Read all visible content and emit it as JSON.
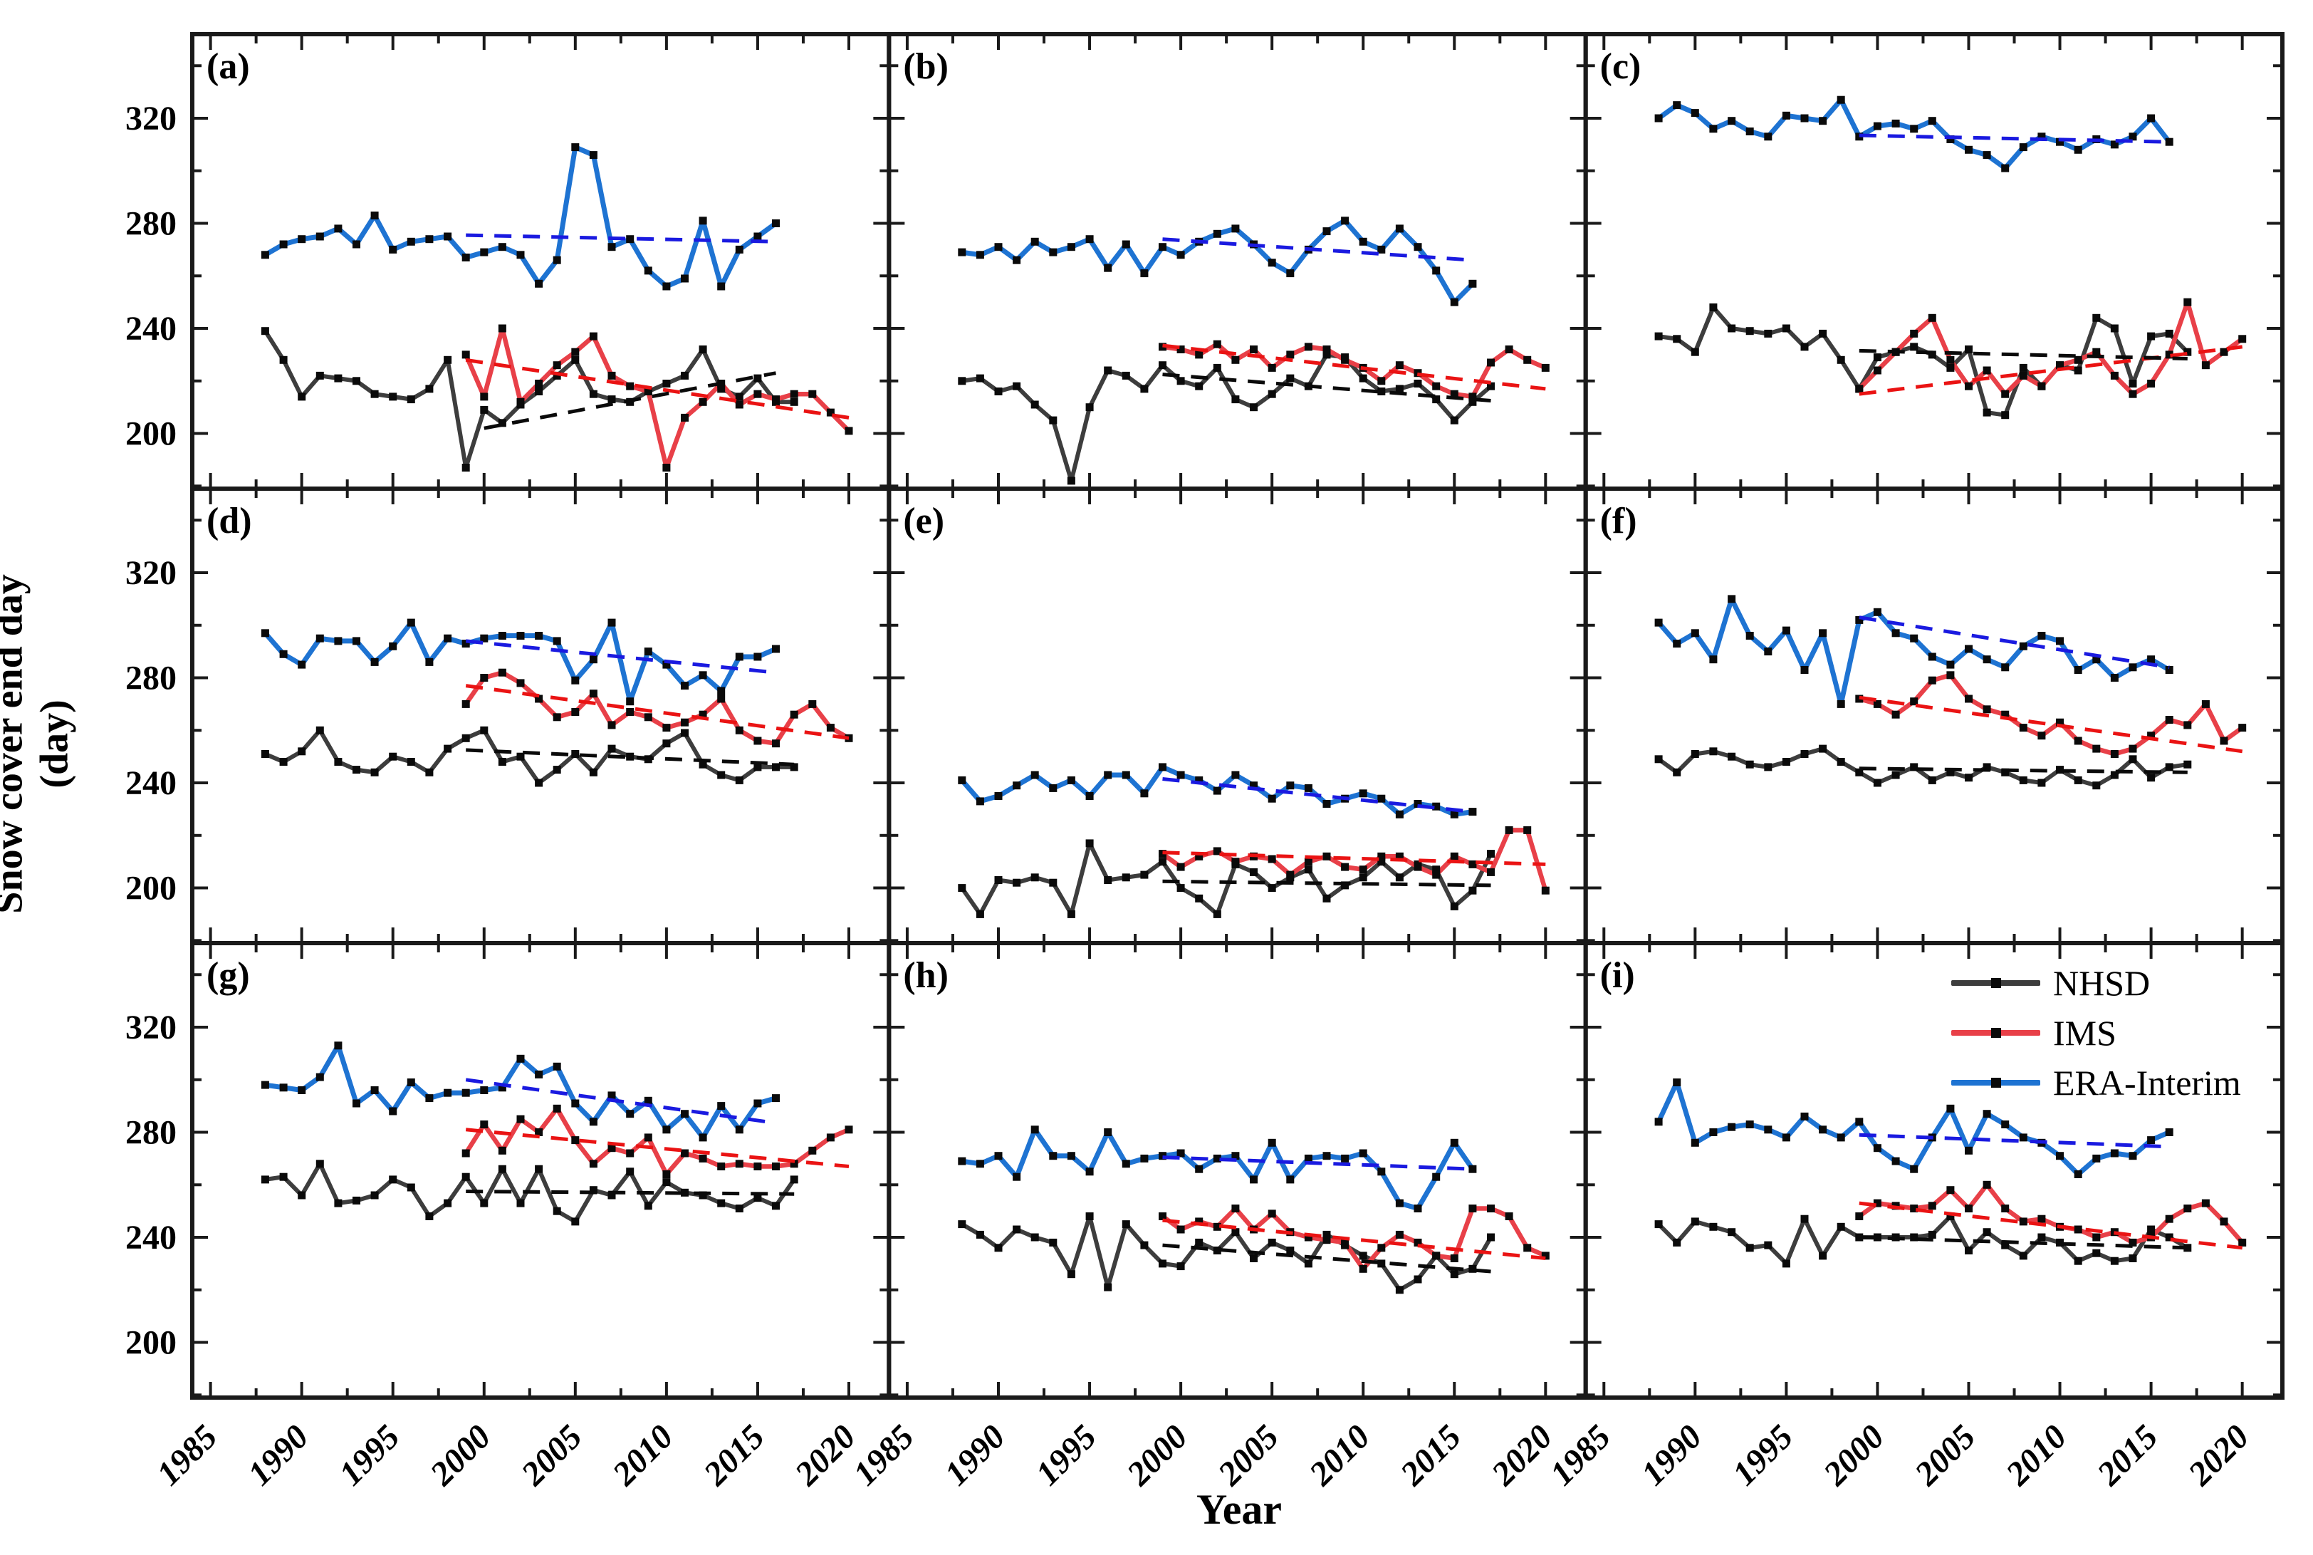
{
  "figure": {
    "y_axis_title": "Snow cover end day",
    "y_axis_title_line2": "(day)",
    "x_axis_title": "Year"
  },
  "legend": {
    "entries": [
      {
        "label": "NHSD",
        "color": "#3d3d3d"
      },
      {
        "label": "IMS",
        "color": "#e84048"
      },
      {
        "label": "ERA-Interim",
        "color": "#1e73d2"
      }
    ]
  },
  "colors": {
    "nhsd_line": "#3d3d3d",
    "ims_line": "#e84048",
    "era_line": "#1e73d2",
    "nhsd_trend": "#0a0a0a",
    "ims_trend": "#ea1313",
    "era_trend": "#1a1ae0",
    "marker": "#0a0a0a",
    "frame": "#1a1a1a"
  },
  "chart_data": {
    "type": "line",
    "title": "",
    "xlabel": "Year",
    "ylabel": "Snow cover end day (day)",
    "y_ticks": [
      320,
      280,
      240,
      200
    ],
    "y_minor_ticks": [
      340,
      300,
      260,
      220,
      180
    ],
    "x_ticks": [
      1985,
      1990,
      1995,
      2000,
      2005,
      2010,
      2015,
      2020
    ],
    "x_range": [
      1984,
      2022.2
    ],
    "y_range": [
      179,
      352
    ],
    "grid": false,
    "legend_position": "top-right of panel (i)",
    "series_names": [
      "NHSD",
      "IMS",
      "ERA-Interim"
    ],
    "panels": [
      {
        "panel_label": "(a)",
        "nhsd": {
          "start_year": 1988,
          "values": [
            239,
            228,
            214,
            222,
            221,
            220,
            215,
            214,
            213,
            217,
            228,
            187,
            209,
            204,
            211,
            216,
            222,
            228,
            215,
            213,
            212,
            216,
            219,
            222,
            232,
            217,
            214,
            221,
            212,
            212
          ]
        },
        "ims": {
          "start_year": 1999,
          "values": [
            230,
            214,
            240,
            212,
            219,
            226,
            231,
            237,
            222,
            218,
            216,
            187,
            206,
            212,
            219,
            211,
            215,
            213,
            215,
            215,
            208,
            201
          ]
        },
        "era": {
          "start_year": 1988,
          "values": [
            268,
            272,
            274,
            275,
            278,
            272,
            283,
            270,
            273,
            274,
            275,
            267,
            269,
            271,
            268,
            257,
            266,
            309,
            306,
            271,
            274,
            262,
            256,
            259,
            281,
            256,
            270,
            275,
            280
          ]
        },
        "trends": {
          "era": [
            1999,
            275.5,
            2016,
            273
          ],
          "ims": [
            1999,
            228,
            2020,
            206
          ],
          "nhsd": [
            2000,
            202,
            2016,
            223
          ]
        }
      },
      {
        "panel_label": "(b)",
        "nhsd": {
          "start_year": 1988,
          "values": [
            220,
            221,
            216,
            218,
            211,
            205,
            182,
            210,
            224,
            222,
            217,
            226,
            220,
            218,
            225,
            213,
            210,
            215,
            221,
            218,
            230,
            229,
            221,
            216,
            217,
            219,
            213,
            205,
            212,
            218
          ]
        },
        "ims": {
          "start_year": 1999,
          "values": [
            233,
            232,
            230,
            234,
            228,
            232,
            225,
            230,
            233,
            232,
            228,
            225,
            220,
            226,
            223,
            218,
            215,
            214,
            227,
            232,
            228,
            225
          ]
        },
        "era": {
          "start_year": 1988,
          "values": [
            269,
            268,
            271,
            266,
            273,
            269,
            271,
            274,
            263,
            272,
            261,
            271,
            268,
            273,
            276,
            278,
            272,
            265,
            261,
            270,
            277,
            281,
            273,
            270,
            278,
            271,
            262,
            250,
            257
          ]
        },
        "trends": {
          "era": [
            1999,
            274,
            2016,
            266
          ],
          "ims": [
            1999,
            233.5,
            2020,
            217
          ],
          "nhsd": [
            1999,
            222.5,
            2017,
            212.5
          ]
        }
      },
      {
        "panel_label": "(c)",
        "nhsd": {
          "start_year": 1988,
          "values": [
            237,
            236,
            231,
            248,
            240,
            239,
            238,
            240,
            233,
            238,
            228,
            217,
            229,
            231,
            233,
            230,
            225,
            232,
            208,
            207,
            225,
            218,
            226,
            224,
            244,
            240,
            219,
            237,
            238,
            231
          ]
        },
        "ims": {
          "start_year": 1999,
          "values": [
            217,
            224,
            231,
            238,
            244,
            228,
            218,
            224,
            215,
            222,
            218,
            226,
            228,
            231,
            222,
            215,
            219,
            230,
            250,
            226,
            231,
            236
          ]
        },
        "era": {
          "start_year": 1988,
          "values": [
            320,
            325,
            322,
            316,
            319,
            315,
            313,
            321,
            320,
            319,
            327,
            313,
            317,
            318,
            316,
            319,
            312,
            308,
            306,
            301,
            309,
            313,
            311,
            308,
            312,
            310,
            313,
            320,
            311
          ]
        },
        "trends": {
          "era": [
            1999,
            313.5,
            2016,
            311
          ],
          "ims": [
            1999,
            215,
            2020,
            233
          ],
          "nhsd": [
            1999,
            231.5,
            2017,
            228.5
          ]
        }
      },
      {
        "panel_label": "(d)",
        "nhsd": {
          "start_year": 1988,
          "values": [
            251,
            248,
            252,
            260,
            248,
            245,
            244,
            250,
            248,
            244,
            253,
            257,
            260,
            248,
            250,
            240,
            245,
            251,
            244,
            253,
            250,
            249,
            255,
            259,
            247,
            243,
            241,
            246,
            246,
            246
          ]
        },
        "ims": {
          "start_year": 1999,
          "values": [
            270,
            280,
            282,
            278,
            272,
            265,
            267,
            274,
            262,
            267,
            265,
            261,
            263,
            266,
            272,
            260,
            256,
            255,
            266,
            270,
            261,
            257
          ]
        },
        "era": {
          "start_year": 1988,
          "values": [
            297,
            289,
            285,
            295,
            294,
            294,
            286,
            292,
            301,
            286,
            295,
            293,
            295,
            296,
            296,
            296,
            294,
            279,
            287,
            301,
            271,
            290,
            285,
            277,
            281,
            275,
            288,
            288,
            291
          ]
        },
        "trends": {
          "era": [
            1999,
            294,
            2016,
            282
          ],
          "ims": [
            1999,
            277,
            2020,
            257
          ],
          "nhsd": [
            1999,
            252.5,
            2017,
            247
          ]
        }
      },
      {
        "panel_label": "(e)",
        "nhsd": {
          "start_year": 1988,
          "values": [
            200,
            190,
            203,
            202,
            204,
            202,
            190,
            217,
            203,
            204,
            205,
            210,
            200,
            196,
            190,
            209,
            206,
            200,
            204,
            207,
            196,
            201,
            204,
            210,
            204,
            209,
            207,
            193,
            199,
            213
          ]
        },
        "ims": {
          "start_year": 1999,
          "values": [
            213,
            208,
            212,
            214,
            210,
            212,
            211,
            205,
            210,
            212,
            208,
            207,
            212,
            212,
            208,
            205,
            212,
            209,
            206,
            222,
            222,
            199
          ]
        },
        "era": {
          "start_year": 1988,
          "values": [
            241,
            233,
            235,
            239,
            243,
            238,
            241,
            235,
            243,
            243,
            236,
            246,
            243,
            241,
            237,
            243,
            239,
            234,
            239,
            238,
            232,
            234,
            236,
            234,
            228,
            232,
            231,
            228,
            229
          ]
        },
        "trends": {
          "era": [
            1999,
            241.5,
            2016,
            229
          ],
          "ims": [
            1999,
            213.5,
            2020,
            209
          ],
          "nhsd": [
            1999,
            202.5,
            2017,
            201
          ]
        }
      },
      {
        "panel_label": "(f)",
        "nhsd": {
          "start_year": 1988,
          "values": [
            249,
            244,
            251,
            252,
            250,
            247,
            246,
            248,
            251,
            253,
            248,
            244,
            240,
            243,
            246,
            241,
            244,
            242,
            246,
            244,
            241,
            240,
            245,
            241,
            239,
            243,
            249,
            242,
            246,
            247
          ]
        },
        "ims": {
          "start_year": 1999,
          "values": [
            272,
            270,
            266,
            271,
            279,
            281,
            272,
            268,
            266,
            261,
            258,
            263,
            256,
            253,
            251,
            253,
            258,
            264,
            262,
            270,
            256,
            261
          ]
        },
        "era": {
          "start_year": 1988,
          "values": [
            301,
            293,
            297,
            287,
            310,
            296,
            290,
            298,
            283,
            297,
            270,
            302,
            305,
            297,
            295,
            288,
            285,
            291,
            287,
            284,
            292,
            296,
            294,
            283,
            287,
            280,
            284,
            287,
            283
          ]
        },
        "trends": {
          "era": [
            1999,
            303,
            2016,
            284
          ],
          "ims": [
            1999,
            272.5,
            2020,
            252
          ],
          "nhsd": [
            1999,
            245.5,
            2017,
            244
          ]
        }
      },
      {
        "panel_label": "(g)",
        "nhsd": {
          "start_year": 1988,
          "values": [
            262,
            263,
            256,
            268,
            253,
            254,
            256,
            262,
            259,
            248,
            253,
            263,
            253,
            266,
            253,
            266,
            250,
            246,
            258,
            256,
            265,
            252,
            261,
            257,
            256,
            253,
            251,
            255,
            252,
            262
          ]
        },
        "ims": {
          "start_year": 1999,
          "values": [
            272,
            283,
            273,
            285,
            280,
            289,
            277,
            268,
            274,
            272,
            278,
            264,
            272,
            270,
            267,
            268,
            267,
            267,
            268,
            273,
            278,
            281
          ]
        },
        "era": {
          "start_year": 1988,
          "values": [
            298,
            297,
            296,
            301,
            313,
            291,
            296,
            288,
            299,
            293,
            295,
            295,
            296,
            297,
            308,
            302,
            305,
            291,
            284,
            294,
            287,
            292,
            281,
            287,
            278,
            290,
            281,
            291,
            293
          ]
        },
        "trends": {
          "era": [
            1999,
            300,
            2016,
            283.5
          ],
          "ims": [
            1999,
            281,
            2020,
            267
          ],
          "nhsd": [
            1999,
            257.5,
            2017,
            256.5
          ]
        }
      },
      {
        "panel_label": "(h)",
        "nhsd": {
          "start_year": 1988,
          "values": [
            245,
            241,
            236,
            243,
            240,
            238,
            226,
            248,
            221,
            245,
            237,
            230,
            229,
            238,
            235,
            242,
            232,
            238,
            235,
            230,
            241,
            237,
            233,
            230,
            220,
            224,
            233,
            226,
            228,
            240
          ]
        },
        "ims": {
          "start_year": 1999,
          "values": [
            248,
            243,
            246,
            244,
            251,
            243,
            249,
            242,
            240,
            239,
            238,
            228,
            236,
            241,
            238,
            233,
            232,
            251,
            251,
            248,
            236,
            233
          ]
        },
        "era": {
          "start_year": 1988,
          "values": [
            269,
            268,
            271,
            263,
            281,
            271,
            271,
            265,
            280,
            268,
            270,
            271,
            272,
            266,
            270,
            271,
            262,
            276,
            262,
            270,
            271,
            270,
            272,
            265,
            253,
            251,
            263,
            276,
            266
          ]
        },
        "trends": {
          "era": [
            1999,
            270.5,
            2016,
            266
          ],
          "ims": [
            1999,
            246.5,
            2020,
            232
          ],
          "nhsd": [
            1999,
            237,
            2017,
            227
          ]
        }
      },
      {
        "panel_label": "(i)",
        "nhsd": {
          "start_year": 1988,
          "values": [
            245,
            238,
            246,
            244,
            242,
            236,
            237,
            230,
            247,
            233,
            244,
            240,
            240,
            240,
            240,
            241,
            248,
            235,
            242,
            237,
            233,
            240,
            238,
            231,
            234,
            231,
            232,
            243,
            240,
            236
          ]
        },
        "ims": {
          "start_year": 1999,
          "values": [
            248,
            253,
            252,
            251,
            252,
            258,
            251,
            260,
            251,
            246,
            247,
            244,
            243,
            240,
            242,
            238,
            240,
            247,
            251,
            253,
            246,
            238
          ]
        },
        "era": {
          "start_year": 1988,
          "values": [
            284,
            299,
            276,
            280,
            282,
            283,
            281,
            278,
            286,
            281,
            278,
            284,
            274,
            269,
            266,
            278,
            289,
            273,
            287,
            283,
            278,
            276,
            271,
            264,
            270,
            272,
            271,
            277,
            280
          ]
        },
        "trends": {
          "era": [
            1999,
            279,
            2016,
            274.5
          ],
          "ims": [
            1999,
            253,
            2020,
            236
          ],
          "nhsd": [
            1999,
            240,
            2017,
            236
          ]
        }
      }
    ]
  }
}
